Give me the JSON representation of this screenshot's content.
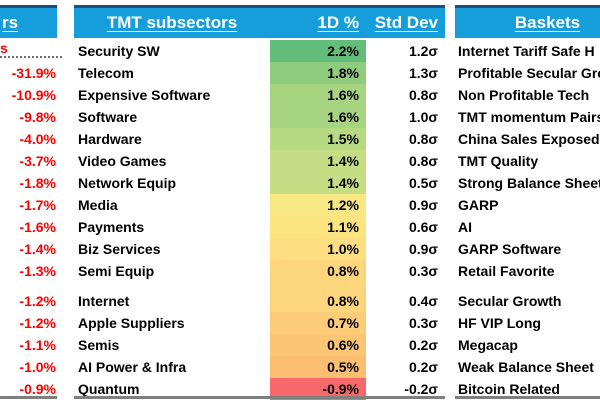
{
  "colors": {
    "header_bg": "#169DDB",
    "header_top_border": "#1F4E79",
    "header_text": "#FFFFFF",
    "negative_text": "#FF0000",
    "bottom_border": "#7F7F7F",
    "spacer_cell": "#FDD57D"
  },
  "left_panel": {
    "header_fragment": "rs",
    "row_fragment": "s",
    "values": [
      {
        "value": "-31.9%"
      },
      {
        "value": "-10.9%"
      },
      {
        "value": "-9.8%"
      },
      {
        "value": "-4.0%"
      },
      {
        "value": "-3.7%"
      },
      {
        "value": "-1.8%"
      },
      {
        "value": "-1.7%"
      },
      {
        "value": "-1.6%"
      },
      {
        "value": "-1.4%"
      },
      {
        "value": "-1.3%"
      },
      {
        "value": "-1.2%",
        "gap_before": true
      },
      {
        "value": "-1.2%"
      },
      {
        "value": "-1.1%"
      },
      {
        "value": "-1.0%"
      },
      {
        "value": "-0.9%"
      }
    ]
  },
  "tmt_table": {
    "header": {
      "name": "TMT subsectors",
      "change": "1D %",
      "stddev": "Std Dev"
    },
    "rows": [
      {
        "name": "Security SW",
        "change": "2.2%",
        "stddev": "1.2σ",
        "color": "#63BE7B"
      },
      {
        "name": "Telecom",
        "change": "1.8%",
        "stddev": "1.3σ",
        "color": "#90CC7E"
      },
      {
        "name": "Expensive Software",
        "change": "1.6%",
        "stddev": "0.8σ",
        "color": "#A6D480"
      },
      {
        "name": "Software",
        "change": "1.6%",
        "stddev": "1.0σ",
        "color": "#A6D480"
      },
      {
        "name": "Hardware",
        "change": "1.5%",
        "stddev": "0.8σ",
        "color": "#B6DA81"
      },
      {
        "name": "Video Games",
        "change": "1.4%",
        "stddev": "0.8σ",
        "color": "#C5DE83"
      },
      {
        "name": "Network Equip",
        "change": "1.4%",
        "stddev": "0.5σ",
        "color": "#C5DE83"
      },
      {
        "name": "Media",
        "change": "1.2%",
        "stddev": "0.9σ",
        "color": "#F7E883"
      },
      {
        "name": "Payments",
        "change": "1.1%",
        "stddev": "0.6σ",
        "color": "#FCE481"
      },
      {
        "name": "Biz Services",
        "change": "1.0%",
        "stddev": "0.9σ",
        "color": "#FDDE80"
      },
      {
        "name": "Semi Equip",
        "change": "0.8%",
        "stddev": "0.3σ",
        "color": "#FDD57D"
      },
      {
        "name": "Internet",
        "change": "0.8%",
        "stddev": "0.4σ",
        "color": "#FDD57D",
        "gap_before": true
      },
      {
        "name": "Apple Suppliers",
        "change": "0.7%",
        "stddev": "0.3σ",
        "color": "#FCCC79"
      },
      {
        "name": "Semis",
        "change": "0.6%",
        "stddev": "0.2σ",
        "color": "#FBC574"
      },
      {
        "name": "AI Power & Infra",
        "change": "0.5%",
        "stddev": "0.2σ",
        "color": "#FBBE71"
      },
      {
        "name": "Quantum",
        "change": "-0.9%",
        "stddev": "-0.2σ",
        "color": "#F8696B"
      }
    ]
  },
  "baskets": {
    "header": "Baskets",
    "items": [
      {
        "label": "Internet Tariff Safe H"
      },
      {
        "label": "Profitable Secular Gro"
      },
      {
        "label": "Non Profitable Tech"
      },
      {
        "label": "TMT momentum Pairs"
      },
      {
        "label": "China Sales Exposed"
      },
      {
        "label": "TMT Quality"
      },
      {
        "label": "Strong Balance Sheet"
      },
      {
        "label": "GARP"
      },
      {
        "label": "AI"
      },
      {
        "label": "GARP Software"
      },
      {
        "label": "Retail Favorite"
      },
      {
        "label": "Secular Growth",
        "gap_before": true
      },
      {
        "label": "HF VIP Long"
      },
      {
        "label": "Megacap"
      },
      {
        "label": "Weak Balance Sheet"
      },
      {
        "label": "Bitcoin Related"
      }
    ]
  }
}
